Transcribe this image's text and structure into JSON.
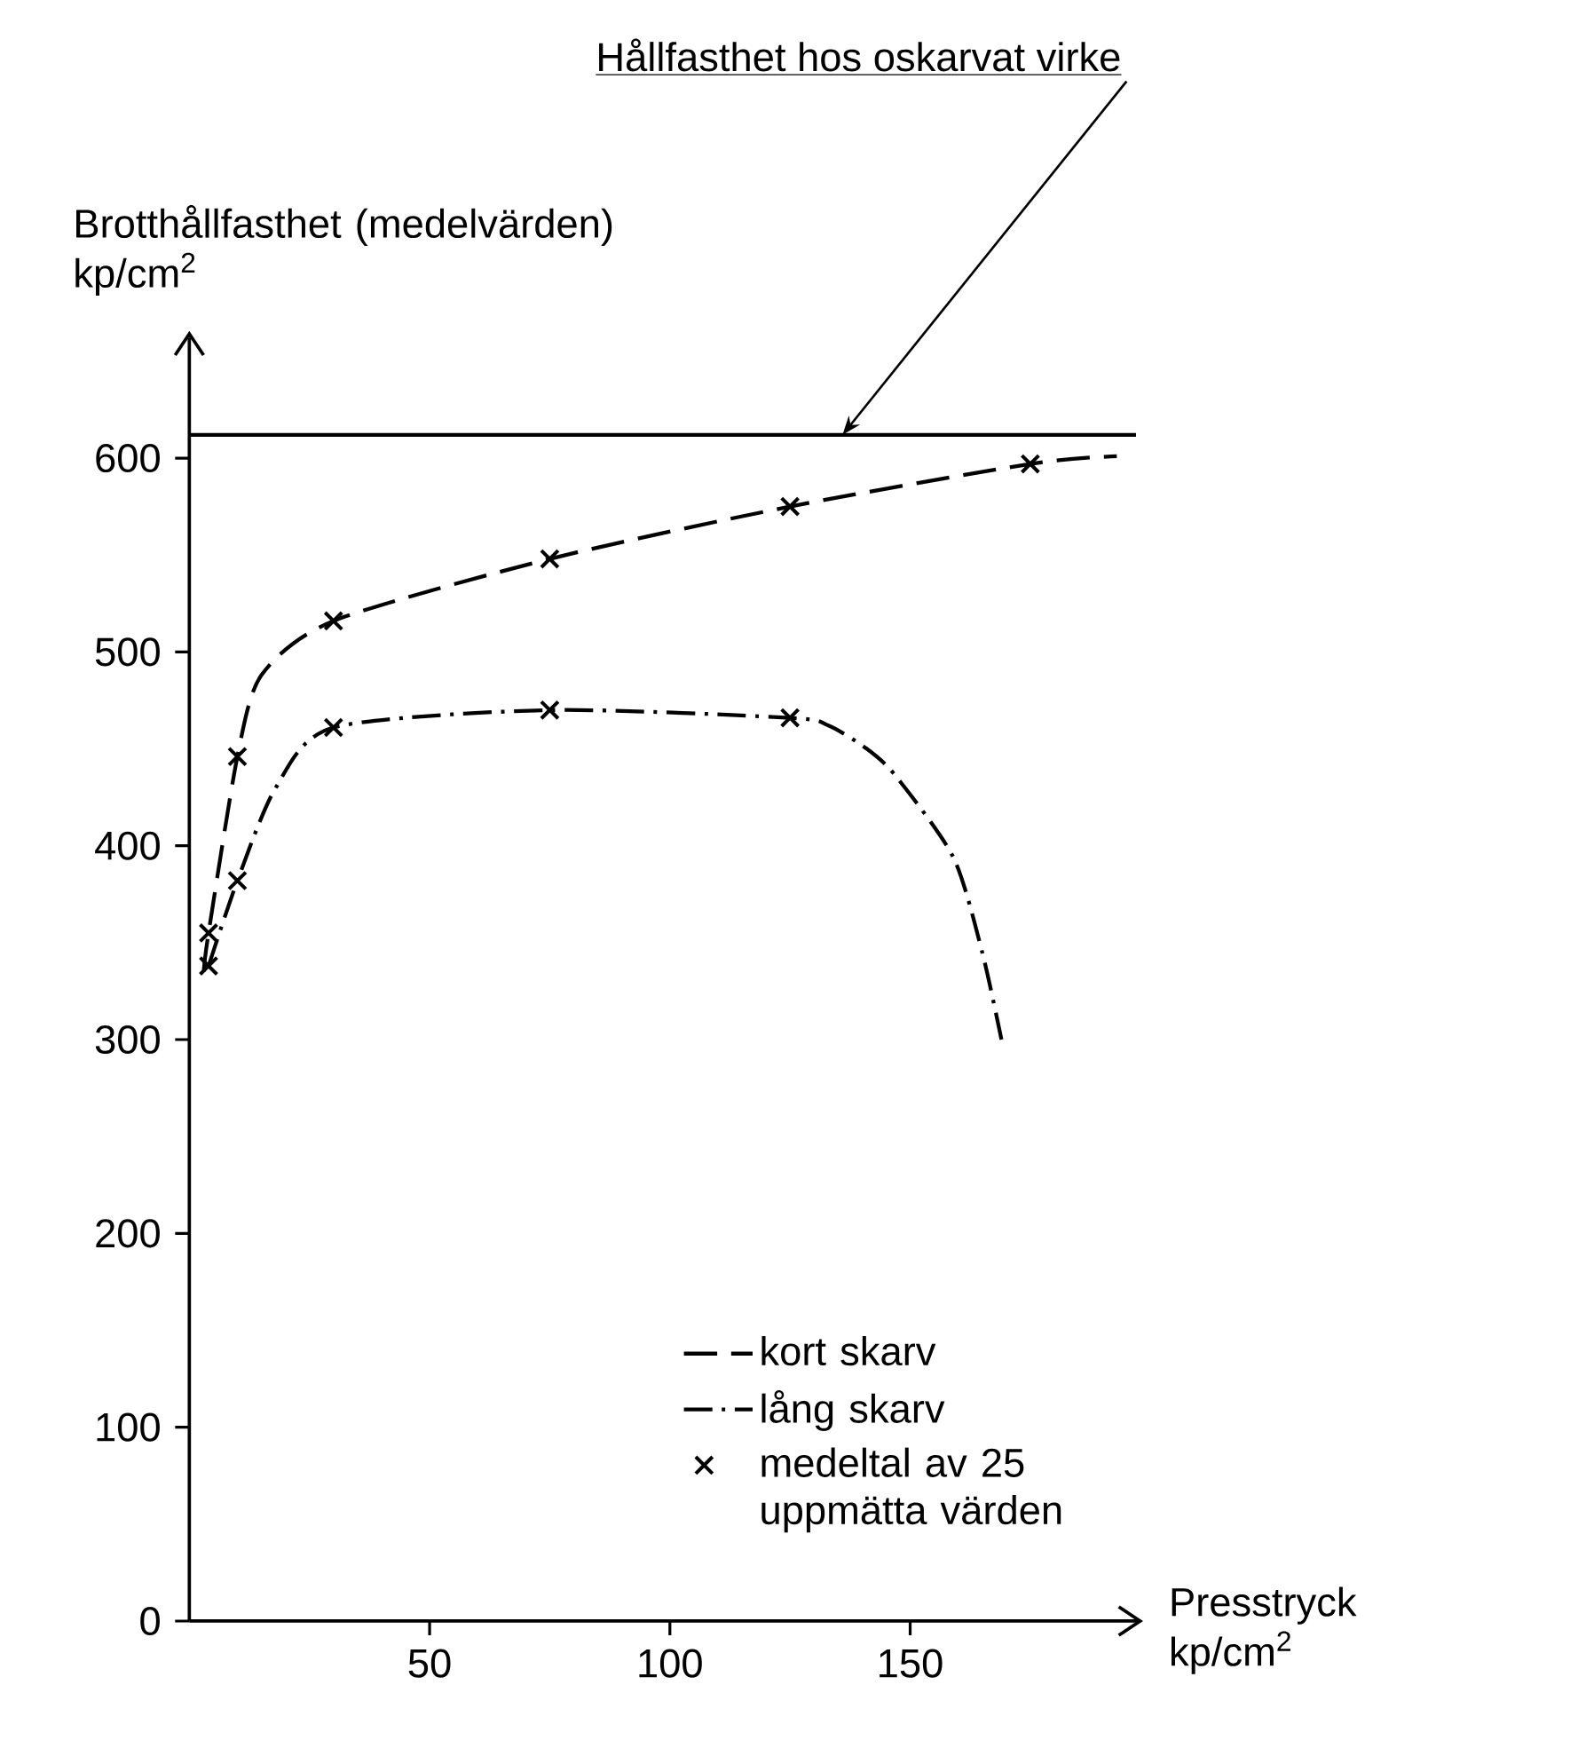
{
  "chart_data": {
    "type": "line",
    "xlabel": "Presstryck kp/cm$^{2}$",
    "ylabel": "Brotthållfasthet (medelvärden) kp/cm$^{2}$",
    "xlim": [
      0,
      197
    ],
    "ylim": [
      0,
      662
    ],
    "xticks": [
      50,
      100,
      150
    ],
    "yticks": [
      0,
      100,
      200,
      300,
      400,
      500,
      600
    ],
    "grid": false,
    "legend": "bottom right",
    "series": [
      {
        "name": "kort skarv",
        "color": "#000000",
        "line_style": "dashed",
        "marker": "none",
        "x": [
          3,
          4,
          10,
          15,
          30,
          75,
          125,
          175,
          193
        ],
        "values": [
          335,
          355,
          446,
          488,
          516,
          548,
          575,
          597,
          601
        ]
      },
      {
        "name": "lång skarv",
        "color": "#000000",
        "line_style": "dashdot",
        "marker": "none",
        "x": [
          4,
          10,
          18,
          30,
          75,
          125,
          133,
          141,
          147,
          159,
          165,
          169
        ],
        "values": [
          338,
          382,
          430,
          461,
          470,
          466,
          462,
          450,
          436,
          394,
          345,
          300
        ]
      },
      {
        "name": "medeltal av 25 uppmätta värden",
        "type": "scatter",
        "color": "#000000",
        "marker": "cross",
        "x": [
          4,
          4,
          10,
          10,
          30,
          30,
          75,
          75,
          125,
          125,
          175
        ],
        "values": [
          355,
          338,
          446,
          382,
          516,
          461,
          548,
          470,
          575,
          466,
          597
        ]
      }
    ],
    "ref_lines": [
      {
        "axis": "y",
        "value": 612,
        "label": "Hållfasthet hos oskarvat virke",
        "color": "#000000",
        "line_style": "solid"
      }
    ]
  }
}
